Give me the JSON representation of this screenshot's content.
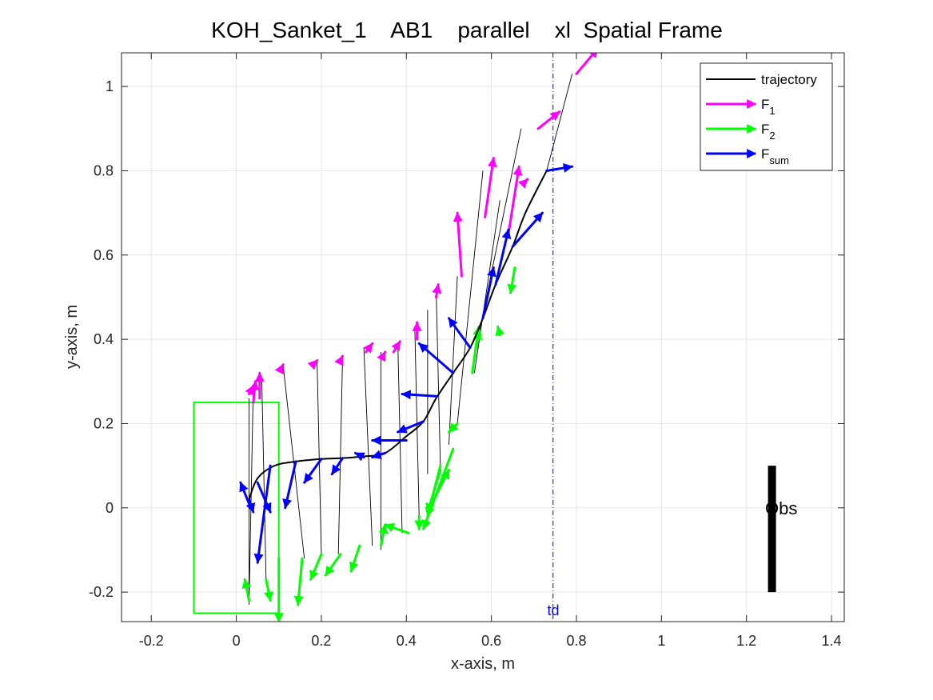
{
  "chart_data": {
    "type": "line",
    "title": "KOH_Sanket_1    AB1    parallel    xl  Spatial Frame",
    "xlabel": "x-axis, m",
    "ylabel": "y-axis, m",
    "xlim": [
      -0.27,
      1.43
    ],
    "ylim": [
      -0.27,
      1.08
    ],
    "xticks": [
      -0.2,
      0,
      0.2,
      0.4,
      0.6,
      0.8,
      1,
      1.2,
      1.4
    ],
    "xtick_labels": [
      "-0.2",
      "0",
      "0.2",
      "0.4",
      "0.6",
      "0.8",
      "1",
      "1.2",
      "1.4"
    ],
    "yticks": [
      -0.2,
      0,
      0.2,
      0.4,
      0.6,
      0.8,
      1
    ],
    "ytick_labels": [
      "-0.2",
      "0",
      "0.2",
      "0.4",
      "0.6",
      "0.8",
      "1"
    ],
    "grid": true,
    "legend_position": "top-right",
    "legend": [
      {
        "label": "trajectory",
        "sub": "",
        "color": "#000000",
        "kind": "line"
      },
      {
        "label": "F",
        "sub": "1",
        "color": "#ff00ff",
        "kind": "arrow"
      },
      {
        "label": "F",
        "sub": "2",
        "color": "#00ff00",
        "kind": "arrow"
      },
      {
        "label": "F",
        "sub": "sum",
        "color": "#0000ff",
        "kind": "arrow"
      }
    ],
    "colors": {
      "trajectory": "#000000",
      "F1": "#ff00ff",
      "F2": "#00ff00",
      "Fsum": "#0000ff",
      "box": "#00ff00",
      "td": "#0000ff",
      "obstacle": "#000000"
    },
    "trajectory": [
      [
        0.03,
        0.02
      ],
      [
        0.05,
        0.07
      ],
      [
        0.09,
        0.1
      ],
      [
        0.14,
        0.11
      ],
      [
        0.2,
        0.116
      ],
      [
        0.25,
        0.118
      ],
      [
        0.3,
        0.122
      ],
      [
        0.35,
        0.13
      ],
      [
        0.4,
        0.17
      ],
      [
        0.44,
        0.205
      ],
      [
        0.47,
        0.26
      ],
      [
        0.51,
        0.32
      ],
      [
        0.55,
        0.38
      ],
      [
        0.58,
        0.45
      ],
      [
        0.61,
        0.53
      ],
      [
        0.65,
        0.62
      ],
      [
        0.68,
        0.7
      ],
      [
        0.73,
        0.8
      ]
    ],
    "connectors": [
      [
        [
          0.04,
          0.29
        ],
        [
          0.03,
          -0.23
        ]
      ],
      [
        [
          0.03,
          0.26
        ],
        [
          0.03,
          -0.22
        ]
      ],
      [
        [
          0.06,
          0.3
        ],
        [
          0.07,
          -0.17
        ]
      ],
      [
        [
          0.11,
          0.34
        ],
        [
          0.16,
          -0.12
        ]
      ],
      [
        [
          0.19,
          0.35
        ],
        [
          0.2,
          -0.11
        ]
      ],
      [
        [
          0.25,
          0.36
        ],
        [
          0.24,
          -0.11
        ]
      ],
      [
        [
          0.3,
          0.38
        ],
        [
          0.32,
          -0.09
        ]
      ],
      [
        [
          0.34,
          0.37
        ],
        [
          0.34,
          -0.1
        ]
      ],
      [
        [
          0.38,
          0.39
        ],
        [
          0.39,
          -0.06
        ]
      ],
      [
        [
          0.42,
          0.42
        ],
        [
          0.43,
          -0.02
        ]
      ],
      [
        [
          0.45,
          0.47
        ],
        [
          0.45,
          0.08
        ]
      ],
      [
        [
          0.47,
          0.52
        ],
        [
          0.48,
          0.1
        ]
      ],
      [
        [
          0.52,
          0.55
        ],
        [
          0.5,
          0.15
        ]
      ],
      [
        [
          0.58,
          0.8
        ],
        [
          0.52,
          0.2
        ]
      ],
      [
        [
          0.62,
          0.73
        ],
        [
          0.56,
          0.32
        ]
      ],
      [
        [
          0.67,
          0.9
        ],
        [
          0.57,
          0.41
        ]
      ],
      [
        [
          0.79,
          1.03
        ],
        [
          0.73,
          0.8
        ]
      ]
    ],
    "F1": [
      [
        [
          0.04,
          0.25
        ],
        [
          0.045,
          0.3
        ]
      ],
      [
        [
          0.055,
          0.26
        ],
        [
          0.055,
          0.32
        ]
      ],
      [
        [
          0.03,
          0.27
        ],
        [
          0.04,
          0.29
        ]
      ],
      [
        [
          0.105,
          0.33
        ],
        [
          0.11,
          0.34
        ]
      ],
      [
        [
          0.185,
          0.345
        ],
        [
          0.19,
          0.35
        ]
      ],
      [
        [
          0.245,
          0.35
        ],
        [
          0.25,
          0.36
        ]
      ],
      [
        [
          0.305,
          0.37
        ],
        [
          0.32,
          0.39
        ]
      ],
      [
        [
          0.345,
          0.36
        ],
        [
          0.35,
          0.37
        ]
      ],
      [
        [
          0.37,
          0.37
        ],
        [
          0.385,
          0.395
        ]
      ],
      [
        [
          0.425,
          0.4
        ],
        [
          0.425,
          0.44
        ]
      ],
      [
        [
          0.47,
          0.5
        ],
        [
          0.475,
          0.53
        ]
      ],
      [
        [
          0.53,
          0.55
        ],
        [
          0.52,
          0.7
        ]
      ],
      [
        [
          0.585,
          0.69
        ],
        [
          0.605,
          0.83
        ]
      ],
      [
        [
          0.64,
          0.65
        ],
        [
          0.665,
          0.81
        ]
      ],
      [
        [
          0.675,
          0.77
        ],
        [
          0.685,
          0.78
        ]
      ],
      [
        [
          0.71,
          0.9
        ],
        [
          0.76,
          0.94
        ]
      ],
      [
        [
          0.8,
          1.03
        ],
        [
          0.85,
          1.09
        ]
      ]
    ],
    "F2": [
      [
        [
          0.03,
          -0.22
        ],
        [
          0.02,
          -0.17
        ]
      ],
      [
        [
          0.07,
          -0.17
        ],
        [
          0.08,
          -0.22
        ]
      ],
      [
        [
          0.1,
          -0.12
        ],
        [
          0.1,
          -0.27
        ]
      ],
      [
        [
          0.155,
          -0.12
        ],
        [
          0.145,
          -0.23
        ]
      ],
      [
        [
          0.2,
          -0.11
        ],
        [
          0.175,
          -0.17
        ]
      ],
      [
        [
          0.245,
          -0.11
        ],
        [
          0.21,
          -0.16
        ]
      ],
      [
        [
          0.29,
          -0.09
        ],
        [
          0.27,
          -0.15
        ]
      ],
      [
        [
          0.34,
          -0.09
        ],
        [
          0.35,
          -0.04
        ]
      ],
      [
        [
          0.405,
          -0.06
        ],
        [
          0.35,
          -0.04
        ]
      ],
      [
        [
          0.43,
          -0.02
        ],
        [
          0.43,
          -0.05
        ]
      ],
      [
        [
          0.45,
          -0.01
        ],
        [
          0.5,
          0.09
        ]
      ],
      [
        [
          0.48,
          0.09
        ],
        [
          0.45,
          -0.01
        ]
      ],
      [
        [
          0.48,
          0.1
        ],
        [
          0.45,
          -0.02
        ]
      ],
      [
        [
          0.51,
          0.14
        ],
        [
          0.44,
          -0.05
        ]
      ],
      [
        [
          0.52,
          0.2
        ],
        [
          0.5,
          0.18
        ]
      ],
      [
        [
          0.565,
          0.38
        ],
        [
          0.57,
          0.42
        ]
      ],
      [
        [
          0.555,
          0.32
        ],
        [
          0.57,
          0.43
        ]
      ],
      [
        [
          0.62,
          0.41
        ],
        [
          0.615,
          0.43
        ]
      ],
      [
        [
          0.655,
          0.57
        ],
        [
          0.645,
          0.51
        ]
      ]
    ],
    "Fsum": [
      [
        [
          0.03,
          0.01
        ],
        [
          0.01,
          0.06
        ]
      ],
      [
        [
          0.03,
          0.02
        ],
        [
          0.04,
          -0.01
        ]
      ],
      [
        [
          0.05,
          0.06
        ],
        [
          0.08,
          -0.01
        ]
      ],
      [
        [
          0.08,
          0.1
        ],
        [
          0.05,
          -0.13
        ]
      ],
      [
        [
          0.14,
          0.11
        ],
        [
          0.115,
          -0.0
        ]
      ],
      [
        [
          0.2,
          0.116
        ],
        [
          0.16,
          0.06
        ]
      ],
      [
        [
          0.25,
          0.118
        ],
        [
          0.225,
          0.08
        ]
      ],
      [
        [
          0.3,
          0.12
        ],
        [
          0.28,
          0.13
        ]
      ],
      [
        [
          0.35,
          0.13
        ],
        [
          0.32,
          0.12
        ]
      ],
      [
        [
          0.4,
          0.16
        ],
        [
          0.32,
          0.16
        ]
      ],
      [
        [
          0.44,
          0.205
        ],
        [
          0.38,
          0.18
        ]
      ],
      [
        [
          0.47,
          0.265
        ],
        [
          0.39,
          0.27
        ]
      ],
      [
        [
          0.51,
          0.32
        ],
        [
          0.43,
          0.39
        ]
      ],
      [
        [
          0.55,
          0.38
        ],
        [
          0.5,
          0.45
        ]
      ],
      [
        [
          0.58,
          0.45
        ],
        [
          0.605,
          0.57
        ]
      ],
      [
        [
          0.61,
          0.53
        ],
        [
          0.64,
          0.66
        ]
      ],
      [
        [
          0.65,
          0.62
        ],
        [
          0.72,
          0.7
        ]
      ],
      [
        [
          0.73,
          0.8
        ],
        [
          0.79,
          0.81
        ]
      ]
    ],
    "start_box": {
      "x": [
        -0.1,
        0.1
      ],
      "y": [
        -0.25,
        0.25
      ]
    },
    "td_line_x": 0.745,
    "td_label": "td",
    "obstacle": {
      "x": 1.26,
      "y": [
        -0.2,
        0.1
      ],
      "label": "Obs"
    }
  }
}
